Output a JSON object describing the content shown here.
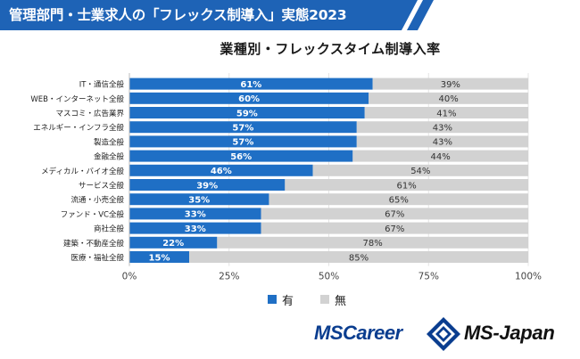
{
  "banner": {
    "title": "管理部門・士業求人の「フレックス制導入」実態2023",
    "color": "#1e63b6"
  },
  "chart_data": {
    "type": "bar",
    "stacked": true,
    "orientation": "horizontal",
    "title": "業種別・フレックスタイム制導入率",
    "categories": [
      "IT・通信全般",
      "WEB・インターネット全般",
      "マスコミ・広告業界",
      "エネルギー・インフラ全般",
      "製造全般",
      "金融全般",
      "メディカル・バイオ全般",
      "サービス全般",
      "流通・小売全般",
      "ファンド・VC全般",
      "商社全般",
      "建築・不動産全般",
      "医療・福祉全般"
    ],
    "series": [
      {
        "name": "有",
        "color": "#1f6fc5",
        "values": [
          61,
          60,
          59,
          57,
          57,
          56,
          46,
          39,
          35,
          33,
          33,
          22,
          15
        ]
      },
      {
        "name": "無",
        "color": "#d2d2d2",
        "values": [
          39,
          40,
          41,
          43,
          43,
          44,
          54,
          61,
          65,
          67,
          67,
          78,
          85
        ]
      }
    ],
    "xlim": [
      0,
      100
    ],
    "x_ticks": [
      "0%",
      "25%",
      "50%",
      "75%",
      "100%"
    ],
    "grid": true,
    "legend": "bottom-center",
    "value_suffix": "%"
  },
  "logos": {
    "mscareer": "MSCareer",
    "msjapan": "MS-Japan"
  }
}
